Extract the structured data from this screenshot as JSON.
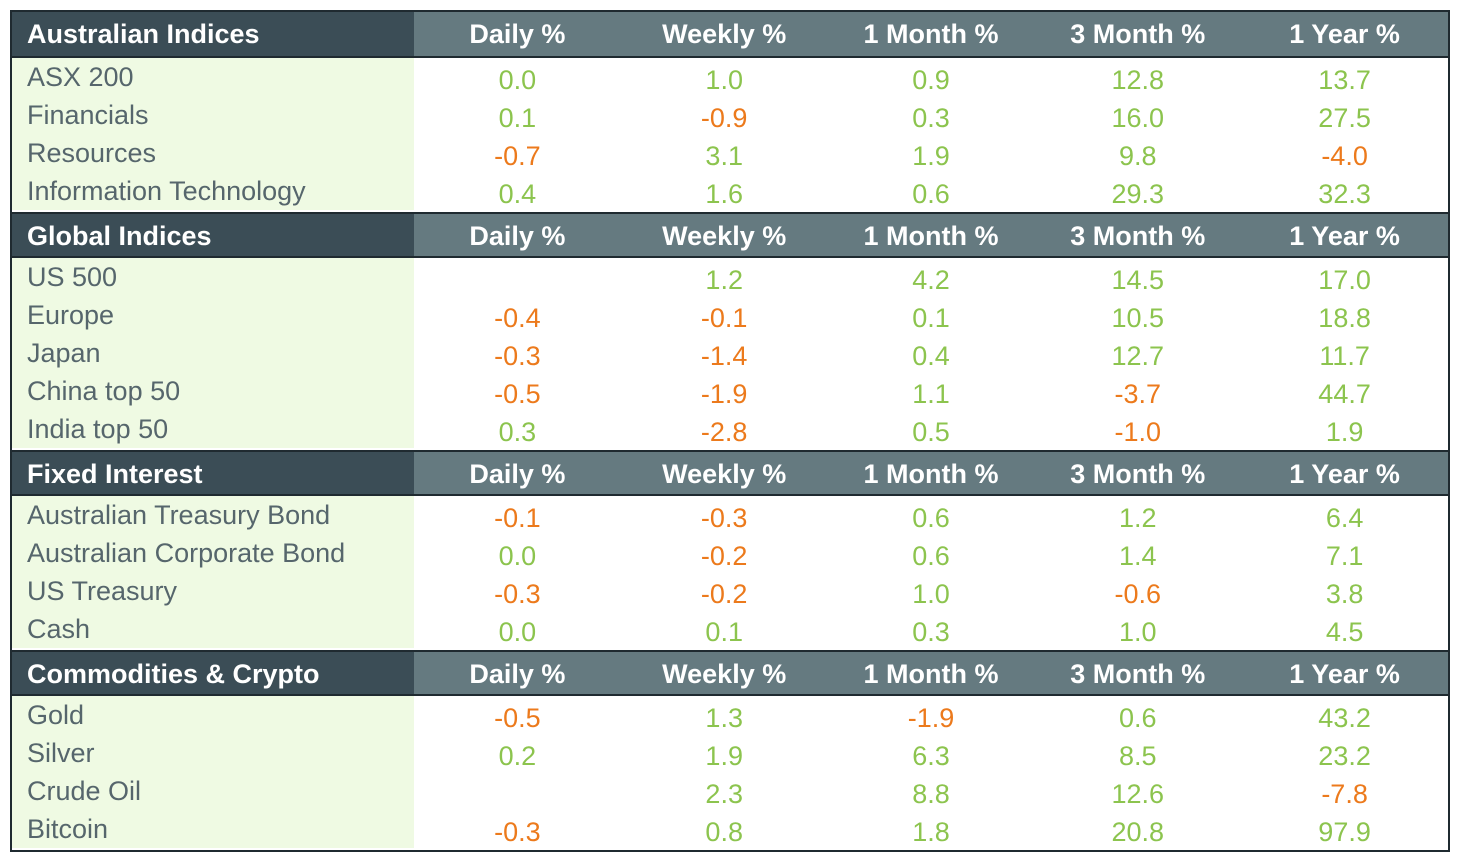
{
  "colors": {
    "positive": "#8cc44e",
    "negative": "#ec7a1c",
    "header_name_bg": "#3b4d56",
    "header_col_bg": "#657a80",
    "name_cell_bg": "#effae3",
    "name_text": "#56666c"
  },
  "columns": [
    "Daily %",
    "Weekly %",
    "1 Month %",
    "3 Month %",
    "1 Year %"
  ],
  "sections": [
    {
      "title": "Australian Indices",
      "rows": [
        {
          "name": "ASX 200",
          "values": [
            "0.0",
            "1.0",
            "0.9",
            "12.8",
            "13.7"
          ]
        },
        {
          "name": "Financials",
          "values": [
            "0.1",
            "-0.9",
            "0.3",
            "16.0",
            "27.5"
          ]
        },
        {
          "name": "Resources",
          "values": [
            "-0.7",
            "3.1",
            "1.9",
            "9.8",
            "-4.0"
          ]
        },
        {
          "name": "Information Technology",
          "values": [
            "0.4",
            "1.6",
            "0.6",
            "29.3",
            "32.3"
          ]
        }
      ]
    },
    {
      "title": "Global Indices",
      "rows": [
        {
          "name": "US 500",
          "values": [
            "",
            "1.2",
            "4.2",
            "14.5",
            "17.0"
          ]
        },
        {
          "name": "Europe",
          "values": [
            "-0.4",
            "-0.1",
            "0.1",
            "10.5",
            "18.8"
          ]
        },
        {
          "name": "Japan",
          "values": [
            "-0.3",
            "-1.4",
            "0.4",
            "12.7",
            "11.7"
          ]
        },
        {
          "name": "China top 50",
          "values": [
            "-0.5",
            "-1.9",
            "1.1",
            "-3.7",
            "44.7"
          ]
        },
        {
          "name": "India top 50",
          "values": [
            "0.3",
            "-2.8",
            "0.5",
            "-1.0",
            "1.9"
          ]
        }
      ]
    },
    {
      "title": "Fixed Interest",
      "rows": [
        {
          "name": "Australian Treasury Bond",
          "values": [
            "-0.1",
            "-0.3",
            "0.6",
            "1.2",
            "6.4"
          ]
        },
        {
          "name": "Australian Corporate Bond",
          "values": [
            "0.0",
            "-0.2",
            "0.6",
            "1.4",
            "7.1"
          ]
        },
        {
          "name": "US Treasury",
          "values": [
            "-0.3",
            "-0.2",
            "1.0",
            "-0.6",
            "3.8"
          ]
        },
        {
          "name": "Cash",
          "values": [
            "0.0",
            "0.1",
            "0.3",
            "1.0",
            "4.5"
          ]
        }
      ]
    },
    {
      "title": "Commodities & Crypto",
      "rows": [
        {
          "name": "Gold",
          "values": [
            "-0.5",
            "1.3",
            "-1.9",
            "0.6",
            "43.2"
          ]
        },
        {
          "name": "Silver",
          "values": [
            "0.2",
            "1.9",
            "6.3",
            "8.5",
            "23.2"
          ]
        },
        {
          "name": "Crude Oil",
          "values": [
            "",
            "2.3",
            "8.8",
            "12.6",
            "-7.8"
          ]
        },
        {
          "name": "Bitcoin",
          "values": [
            "-0.3",
            "0.8",
            "1.8",
            "20.8",
            "97.9"
          ]
        }
      ]
    }
  ]
}
